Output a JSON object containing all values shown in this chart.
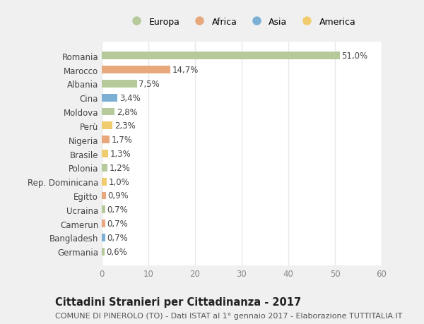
{
  "categories": [
    "Germania",
    "Bangladesh",
    "Camerun",
    "Ucraina",
    "Egitto",
    "Rep. Dominicana",
    "Polonia",
    "Brasile",
    "Nigeria",
    "Perù",
    "Moldova",
    "Cina",
    "Albania",
    "Marocco",
    "Romania"
  ],
  "values": [
    0.6,
    0.7,
    0.7,
    0.7,
    0.9,
    1.0,
    1.2,
    1.3,
    1.7,
    2.3,
    2.8,
    3.4,
    7.5,
    14.7,
    51.0
  ],
  "labels": [
    "0,6%",
    "0,7%",
    "0,7%",
    "0,7%",
    "0,9%",
    "1,0%",
    "1,2%",
    "1,3%",
    "1,7%",
    "2,3%",
    "2,8%",
    "3,4%",
    "7,5%",
    "14,7%",
    "51,0%"
  ],
  "colors": [
    "#b5c99a",
    "#7bafd4",
    "#e8a87c",
    "#b5c99a",
    "#e8a87c",
    "#f0cc6e",
    "#b5c99a",
    "#f0cc6e",
    "#e8a87c",
    "#f0cc6e",
    "#b5c99a",
    "#7bafd4",
    "#b5c99a",
    "#e8a87c",
    "#b5c99a"
  ],
  "legend": [
    {
      "label": "Europa",
      "color": "#b5c99a"
    },
    {
      "label": "Africa",
      "color": "#e8a87c"
    },
    {
      "label": "Asia",
      "color": "#7bafd4"
    },
    {
      "label": "America",
      "color": "#f0cc6e"
    }
  ],
  "xlim": [
    0,
    60
  ],
  "xticks": [
    0,
    10,
    20,
    30,
    40,
    50,
    60
  ],
  "title": "Cittadini Stranieri per Cittadinanza - 2017",
  "subtitle": "COMUNE DI PINEROLO (TO) - Dati ISTAT al 1° gennaio 2017 - Elaborazione TUTTITALIA.IT",
  "fig_background": "#f0f0f0",
  "plot_background": "#ffffff",
  "bar_height": 0.55,
  "grid_color": "#e8e8e8",
  "title_fontsize": 10.5,
  "subtitle_fontsize": 8,
  "label_fontsize": 8.5,
  "tick_fontsize": 8.5,
  "legend_fontsize": 9
}
